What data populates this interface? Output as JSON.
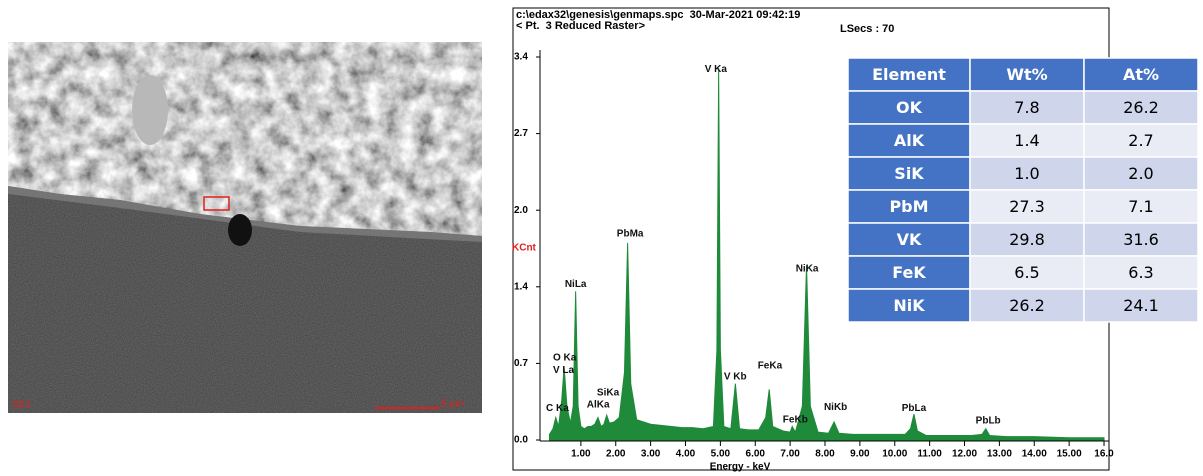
{
  "image": {
    "label": "SE1",
    "scale": "5 µm"
  },
  "header": {
    "file": "c:\\edax32\\genesis\\genmaps.spc  30-Mar-2021 09:42:19",
    "point": "< Pt.  3 Reduced Raster>",
    "lsecs": "LSecs : 70"
  },
  "chart_data": {
    "type": "area",
    "y_label": "KCnt",
    "x_label": "Energy - keV",
    "color": "#1e8a3a",
    "x": [
      0.1,
      0.2,
      0.28,
      0.36,
      0.45,
      0.52,
      0.6,
      0.7,
      0.78,
      0.85,
      0.92,
      1.0,
      1.1,
      1.2,
      1.3,
      1.4,
      1.49,
      1.58,
      1.66,
      1.74,
      1.82,
      1.95,
      2.1,
      2.25,
      2.34,
      2.43,
      2.6,
      2.8,
      3.0,
      3.3,
      3.6,
      3.9,
      4.2,
      4.5,
      4.8,
      4.9,
      4.95,
      5.0,
      5.1,
      5.3,
      5.43,
      5.55,
      5.8,
      6.1,
      6.3,
      6.4,
      6.5,
      6.8,
      7.0,
      7.06,
      7.15,
      7.35,
      7.47,
      7.58,
      7.8,
      8.1,
      8.26,
      8.4,
      8.8,
      9.3,
      9.8,
      10.3,
      10.45,
      10.55,
      10.65,
      10.9,
      11.5,
      12.2,
      12.5,
      12.61,
      12.72,
      13.2,
      14,
      15,
      16
    ],
    "values": [
      0.05,
      0.1,
      0.2,
      0.12,
      0.35,
      0.65,
      0.3,
      0.15,
      0.3,
      1.32,
      0.3,
      0.12,
      0.1,
      0.12,
      0.12,
      0.14,
      0.2,
      0.12,
      0.14,
      0.22,
      0.15,
      0.16,
      0.2,
      0.6,
      1.75,
      0.5,
      0.18,
      0.16,
      0.14,
      0.13,
      0.12,
      0.11,
      0.11,
      0.1,
      0.12,
      0.8,
      3.3,
      0.8,
      0.12,
      0.1,
      0.5,
      0.1,
      0.09,
      0.09,
      0.2,
      0.45,
      0.12,
      0.08,
      0.07,
      0.12,
      0.07,
      0.3,
      1.55,
      0.3,
      0.07,
      0.06,
      0.16,
      0.06,
      0.05,
      0.05,
      0.05,
      0.05,
      0.1,
      0.23,
      0.08,
      0.04,
      0.04,
      0.04,
      0.05,
      0.1,
      0.04,
      0.03,
      0.03,
      0.02,
      0.02
    ],
    "xlim": [
      0,
      16.2
    ],
    "ylim": [
      0,
      3.4
    ],
    "xticks": [
      {
        "value": 1,
        "label": "1.00"
      },
      {
        "value": 2,
        "label": "2.00"
      },
      {
        "value": 3,
        "label": "3.00"
      },
      {
        "value": 4,
        "label": "4.00"
      },
      {
        "value": 5,
        "label": "5.00"
      },
      {
        "value": 6,
        "label": "6.00"
      },
      {
        "value": 7,
        "label": "7.00"
      },
      {
        "value": 8,
        "label": "8.00"
      },
      {
        "value": 9,
        "label": "9.00"
      },
      {
        "value": 10,
        "label": "10.00"
      },
      {
        "value": 11,
        "label": "11.00"
      },
      {
        "value": 12,
        "label": "12.00"
      },
      {
        "value": 13,
        "label": "13.00"
      },
      {
        "value": 14,
        "label": "14.00"
      },
      {
        "value": 15,
        "label": "15.00"
      },
      {
        "value": 16,
        "label": "16.0"
      }
    ],
    "yticks": [
      {
        "value": 0,
        "label": "0.0"
      },
      {
        "value": 0.68,
        "label": "0.7"
      },
      {
        "value": 1.36,
        "label": "1.4"
      },
      {
        "value": 2.04,
        "label": "2.0"
      },
      {
        "value": 2.72,
        "label": "2.7"
      },
      3.4
    ],
    "annotations": [
      {
        "text": "V Ka",
        "x": 4.55,
        "y": 3.29
      },
      {
        "text": "PbMa",
        "x": 2.03,
        "y": 1.83
      },
      {
        "text": "NiLa",
        "x": 0.54,
        "y": 1.38
      },
      {
        "text": "O Ka",
        "x": 0.2,
        "y": 0.73
      },
      {
        "text": "V La",
        "x": 0.2,
        "y": 0.62
      },
      {
        "text": "SiKa",
        "x": 1.46,
        "y": 0.42
      },
      {
        "text": "AlKa",
        "x": 1.17,
        "y": 0.31
      },
      {
        "text": "C Ka",
        "x": 0,
        "y": 0.28
      },
      {
        "text": "NiKa",
        "x": 7.16,
        "y": 1.52
      },
      {
        "text": "V Kb",
        "x": 5.1,
        "y": 0.56
      },
      {
        "text": "FeKa",
        "x": 6.07,
        "y": 0.66
      },
      {
        "text": "FeKb",
        "x": 6.79,
        "y": 0.18
      },
      {
        "text": "NiKb",
        "x": 7.97,
        "y": 0.29
      },
      {
        "text": "PbLa",
        "x": 10.2,
        "y": 0.28
      },
      {
        "text": "PbLb",
        "x": 12.32,
        "y": 0.17
      }
    ]
  },
  "table": {
    "header": [
      "Element",
      "Wt%",
      "At%"
    ],
    "rows": [
      [
        "OK",
        "7.8",
        "26.2"
      ],
      [
        "AlK",
        "1.4",
        "2.7"
      ],
      [
        "SiK",
        "1.0",
        "2.0"
      ],
      [
        "PbM",
        "27.3",
        "7.1"
      ],
      [
        "VK",
        "29.8",
        "31.6"
      ],
      [
        "FeK",
        "6.5",
        "6.3"
      ],
      [
        "NiK",
        "26.2",
        "24.1"
      ]
    ]
  }
}
